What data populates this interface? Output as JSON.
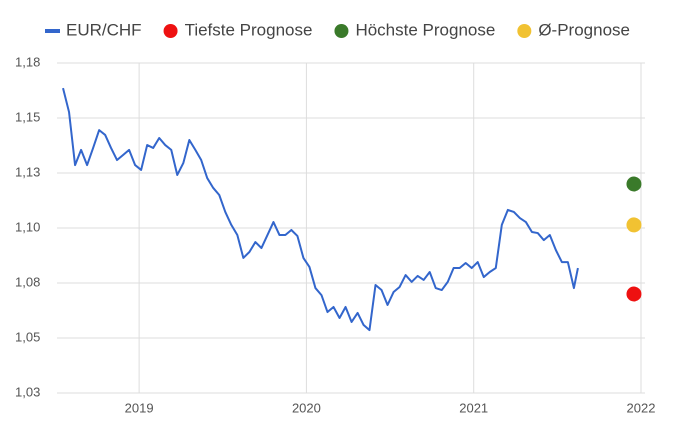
{
  "chart_data": {
    "type": "line",
    "legend": "top",
    "grid": true,
    "xlim": [
      2018.509,
      2022.024
    ],
    "xticks": [
      2019,
      2020,
      2021,
      2022
    ],
    "ylim": [
      1.025,
      1.175
    ],
    "yticks": [
      {
        "value": 1.025,
        "label": "1,03"
      },
      {
        "value": 1.05,
        "label": "1,05"
      },
      {
        "value": 1.075,
        "label": "1,08"
      },
      {
        "value": 1.1,
        "label": "1,10"
      },
      {
        "value": 1.125,
        "label": "1,13"
      },
      {
        "value": 1.15,
        "label": "1,15"
      },
      {
        "value": 1.175,
        "label": "1,18"
      }
    ],
    "series": [
      {
        "name": "EUR/CHF",
        "type": "line",
        "color": "#3366cc",
        "x": [
          2018.545,
          2018.581,
          2018.617,
          2018.653,
          2018.689,
          2018.725,
          2018.761,
          2018.797,
          2018.832,
          2018.868,
          2018.904,
          2018.94,
          2018.976,
          2019.012,
          2019.048,
          2019.084,
          2019.12,
          2019.156,
          2019.192,
          2019.228,
          2019.264,
          2019.3,
          2019.336,
          2019.371,
          2019.407,
          2019.443,
          2019.479,
          2019.515,
          2019.551,
          2019.587,
          2019.623,
          2019.659,
          2019.695,
          2019.731,
          2019.767,
          2019.803,
          2019.839,
          2019.874,
          2019.91,
          2019.946,
          2019.982,
          2020.018,
          2020.054,
          2020.09,
          2020.126,
          2020.162,
          2020.198,
          2020.234,
          2020.27,
          2020.306,
          2020.342,
          2020.377,
          2020.413,
          2020.449,
          2020.485,
          2020.521,
          2020.557,
          2020.593,
          2020.629,
          2020.665,
          2020.701,
          2020.737,
          2020.773,
          2020.809,
          2020.845,
          2020.88,
          2020.916,
          2020.952,
          2020.988,
          2021.024,
          2021.06,
          2021.096,
          2021.132,
          2021.168,
          2021.204,
          2021.24,
          2021.276,
          2021.312,
          2021.348,
          2021.383,
          2021.419,
          2021.455,
          2021.491,
          2021.527,
          2021.563,
          2021.599,
          2021.623
        ],
        "values": [
          1.1636,
          1.1527,
          1.1286,
          1.1355,
          1.1286,
          1.1364,
          1.1445,
          1.1423,
          1.1364,
          1.1309,
          1.1332,
          1.1355,
          1.1286,
          1.1264,
          1.1377,
          1.1364,
          1.1409,
          1.1377,
          1.1355,
          1.1241,
          1.1295,
          1.14,
          1.1355,
          1.1309,
          1.1227,
          1.1182,
          1.115,
          1.1073,
          1.1014,
          1.0968,
          1.0864,
          1.0891,
          1.0936,
          1.0909,
          1.0968,
          1.1027,
          1.0968,
          1.0968,
          1.0991,
          1.0964,
          1.0864,
          1.0823,
          1.0727,
          1.0695,
          1.0618,
          1.0641,
          1.0591,
          1.0641,
          1.0573,
          1.0614,
          1.0559,
          1.0536,
          1.0741,
          1.0718,
          1.065,
          1.0709,
          1.0732,
          1.0786,
          1.0755,
          1.0782,
          1.0764,
          1.08,
          1.0727,
          1.0718,
          1.0755,
          1.0818,
          1.0818,
          1.0841,
          1.0818,
          1.0845,
          1.0777,
          1.08,
          1.0818,
          1.1014,
          1.1082,
          1.1073,
          1.1045,
          1.1027,
          1.0982,
          1.0977,
          1.0945,
          1.0968,
          1.09,
          1.0845,
          1.0845,
          1.0727,
          1.0818
        ]
      },
      {
        "name": "Tiefste Prognose",
        "type": "scatter",
        "color": "#ee1111",
        "x": [
          2021.958
        ],
        "values": [
          1.07
        ]
      },
      {
        "name": "Höchste Prognose",
        "type": "scatter",
        "color": "#3a7a2a",
        "x": [
          2021.958
        ],
        "values": [
          1.12
        ]
      },
      {
        "name": "Ø-Prognose",
        "type": "scatter",
        "color": "#f1c232",
        "x": [
          2021.958
        ],
        "values": [
          1.1014
        ]
      }
    ]
  }
}
